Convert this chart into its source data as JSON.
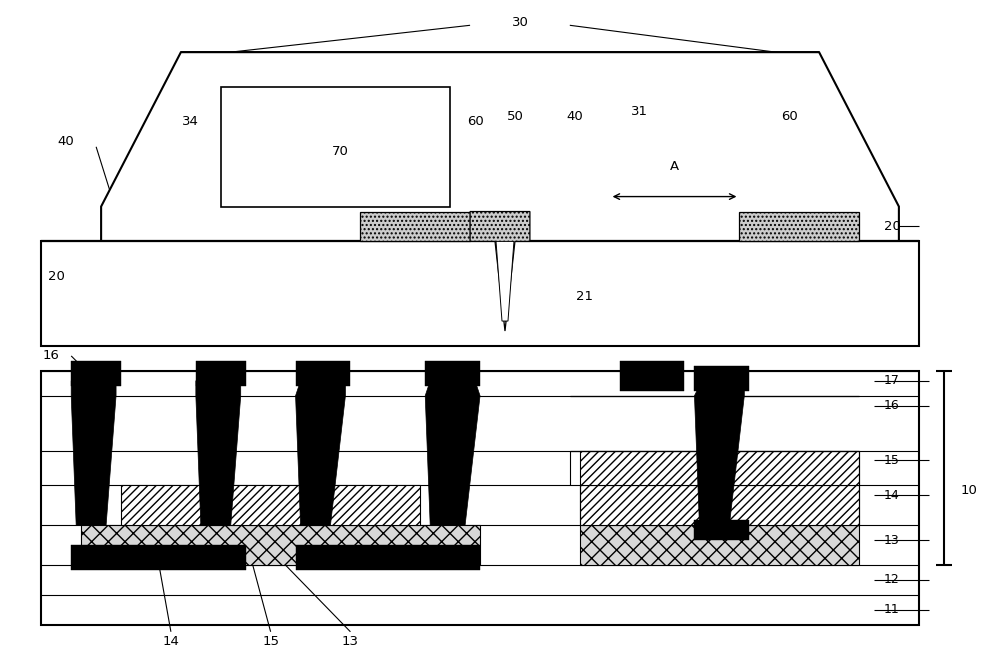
{
  "fig_w": 10.0,
  "fig_h": 6.71,
  "dpi": 100,
  "bg": "#ffffff",
  "lc": "#000000"
}
